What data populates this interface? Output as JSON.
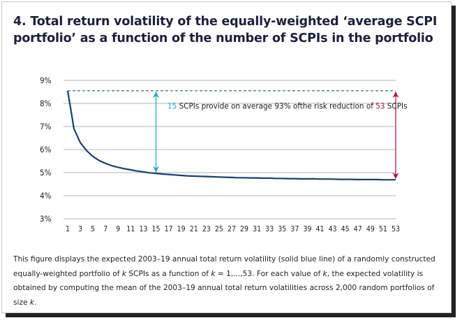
{
  "title": "4. Total return volatility of the equally-weighted ‘average SCPI portfolio’ as a function of the number of SCPIs in the portfolio",
  "colors": {
    "line": "#1b3f6e",
    "arrow_blue": "#2aa6dc",
    "arrow_red": "#a3203a",
    "grid": "#9a9a9a",
    "dashed": "#1b3f6e",
    "text": "#222222"
  },
  "annotation": {
    "num1": "15",
    "part1": " SCPIs provide on average 93% ofthe risk reduction of ",
    "num2": "53",
    "part2": " SCPIs"
  },
  "caption": {
    "p1": "This figure displays the expected 2003–19 annual total return volatility (solid blue line) of a randomly constructed equally-weighted portfolio of ",
    "k1": "k",
    "p2": " SCPIs as a function of ",
    "k2": "k",
    "p3": " = 1,...,53. For each value of ",
    "k3": "k",
    "p4": ", the expected volatility is obtained by computing the mean of the 2003–19 annual total return volatilities across 2,000 random portfolios of size ",
    "k4": "k",
    "p5": "."
  },
  "chart_data": {
    "type": "line",
    "ylim": [
      3,
      9
    ],
    "yticks": [
      "3%",
      "4%",
      "5%",
      "6%",
      "7%",
      "8%",
      "9%"
    ],
    "xlim": [
      1,
      53
    ],
    "xticks": [
      "1",
      "3",
      "5",
      "7",
      "9",
      "11",
      "13",
      "15",
      "17",
      "19",
      "21",
      "23",
      "25",
      "27",
      "29",
      "31",
      "33",
      "35",
      "37",
      "39",
      "41",
      "43",
      "45",
      "47",
      "49",
      "51",
      "53"
    ],
    "grid": true,
    "reference_line": {
      "y": 8.55,
      "style": "dashed"
    },
    "series": [
      {
        "x": [
          1,
          2,
          3,
          4,
          5,
          6,
          7,
          8,
          9,
          10,
          11,
          12,
          13,
          14,
          15,
          16,
          17,
          18,
          19,
          20,
          21,
          22,
          23,
          24,
          25,
          26,
          27,
          28,
          29,
          30,
          31,
          32,
          33,
          34,
          35,
          36,
          37,
          38,
          39,
          40,
          41,
          42,
          43,
          44,
          45,
          46,
          47,
          48,
          49,
          50,
          51,
          52,
          53
        ],
        "values": [
          8.55,
          6.9,
          6.3,
          5.95,
          5.7,
          5.52,
          5.4,
          5.3,
          5.23,
          5.17,
          5.12,
          5.07,
          5.03,
          4.99,
          4.97,
          4.94,
          4.92,
          4.9,
          4.88,
          4.86,
          4.85,
          4.84,
          4.83,
          4.82,
          4.81,
          4.8,
          4.79,
          4.78,
          4.78,
          4.77,
          4.77,
          4.76,
          4.76,
          4.75,
          4.75,
          4.74,
          4.74,
          4.73,
          4.73,
          4.73,
          4.72,
          4.72,
          4.72,
          4.71,
          4.71,
          4.71,
          4.7,
          4.7,
          4.7,
          4.7,
          4.69,
          4.69,
          4.69
        ]
      }
    ],
    "arrows": [
      {
        "x": 15,
        "from": 4.97,
        "to": 8.55,
        "color": "arrow_blue"
      },
      {
        "x": 53,
        "from": 4.69,
        "to": 8.55,
        "color": "arrow_red"
      }
    ]
  }
}
